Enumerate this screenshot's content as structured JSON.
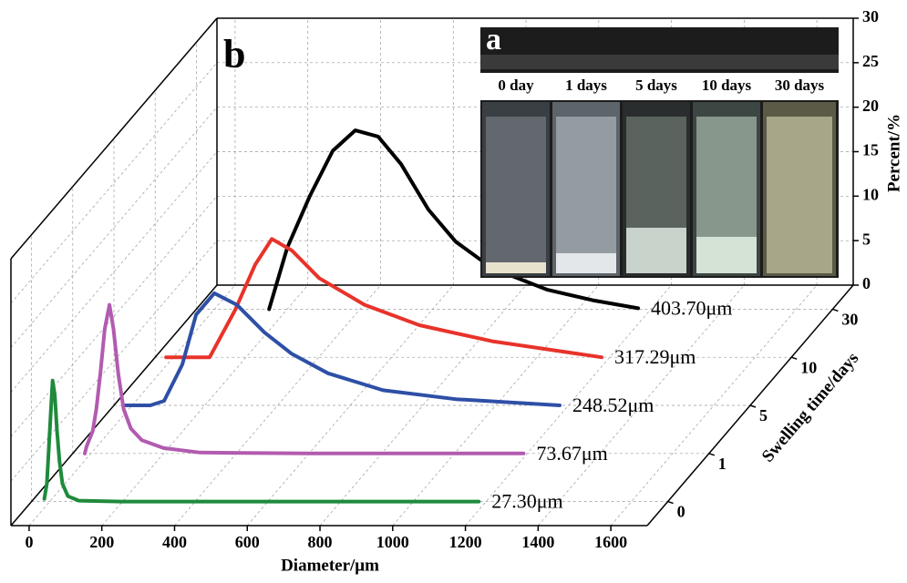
{
  "chart_data": {
    "type": "waterfall3d",
    "panel_label": "b",
    "x_label": "Diameter/μm",
    "y_label": "Percent/%",
    "z_label": "Swelling time/days",
    "xlim": [
      -50,
      1700
    ],
    "xticks": [
      0,
      200,
      400,
      600,
      800,
      1000,
      1200,
      1400,
      1600
    ],
    "ylim": [
      0,
      30
    ],
    "yticks": [
      0,
      5,
      10,
      15,
      20,
      25,
      30
    ],
    "zcategories": [
      "0",
      "1",
      "5",
      "10",
      "30"
    ],
    "grid": true,
    "series": [
      {
        "name": "27.30μm",
        "color": "#1f8a3c",
        "x": [
          -15,
          -8,
          -3,
          3,
          8,
          14,
          20,
          27,
          35,
          50,
          80,
          200,
          600,
          1180
        ],
        "values": [
          0.3,
          2,
          5.5,
          10,
          13.6,
          12,
          8,
          4.5,
          2,
          0.6,
          0.1,
          0,
          0,
          0
        ]
      },
      {
        "name": "73.67μm",
        "color": "#b25bb0",
        "x": [
          -17,
          -12,
          -5,
          5,
          15,
          26,
          38,
          51,
          62,
          75,
          90,
          110,
          140,
          200,
          300,
          600,
          1190
        ],
        "values": [
          0,
          0.8,
          1.5,
          2.5,
          5,
          9,
          14,
          16.7,
          14,
          9,
          5,
          2.8,
          1.5,
          0.6,
          0.1,
          0,
          0
        ]
      },
      {
        "name": "248.52μm",
        "color": "#2e4fa6",
        "x": [
          -20,
          50,
          88,
          138,
          176,
          226,
          288,
          364,
          439,
          539,
          690,
          890,
          1176
        ],
        "values": [
          0,
          0,
          0.5,
          4.6,
          10.2,
          12.6,
          11.3,
          8.2,
          5.8,
          3.6,
          1.7,
          0.7,
          0
        ]
      },
      {
        "name": "317.29μm",
        "color": "#e8332a",
        "x": [
          -20,
          100,
          170,
          225,
          271,
          326,
          401,
          526,
          677,
          877,
          1178
        ],
        "values": [
          0,
          0,
          5.3,
          10.4,
          13.3,
          12,
          8.9,
          5.9,
          3.6,
          1.8,
          0
        ]
      },
      {
        "name": "403.70μm",
        "color": "#000000",
        "x": [
          150,
          200,
          262,
          325,
          387,
          450,
          513,
          588,
          663,
          764,
          914,
          1040,
          1165
        ],
        "values": [
          0,
          6.9,
          12.7,
          17.8,
          20.1,
          19.4,
          16.3,
          11.2,
          7.6,
          4.6,
          2.2,
          1.0,
          0.1
        ]
      }
    ],
    "inset": {
      "label": "a",
      "captions": [
        "0 day",
        "1 days",
        "5 days",
        "10 days",
        "30 days"
      ]
    }
  }
}
